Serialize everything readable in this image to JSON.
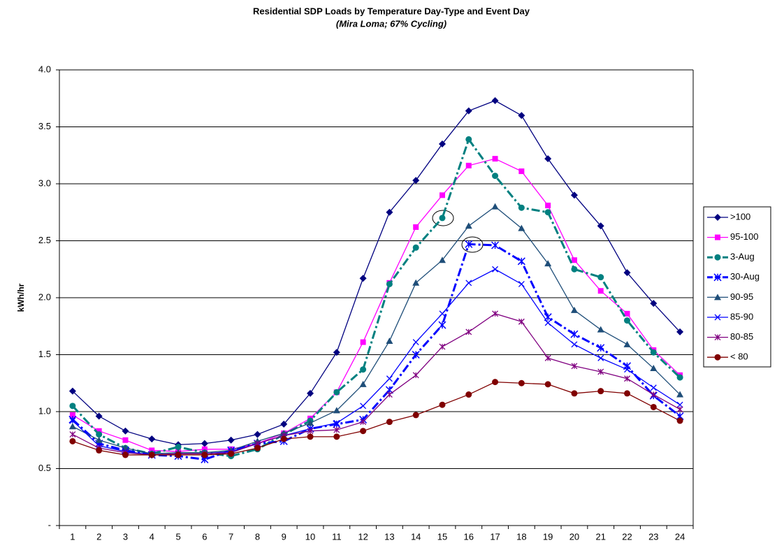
{
  "chart_data": {
    "type": "line",
    "title": "Residential SDP Loads by Temperature Day-Type and Event Day",
    "subtitle": "(Mira Loma; 67% Cycling)",
    "y_label": "kWh/hr",
    "categories": [
      1,
      2,
      3,
      4,
      5,
      6,
      7,
      8,
      9,
      10,
      11,
      12,
      13,
      14,
      15,
      16,
      17,
      18,
      19,
      20,
      21,
      22,
      23,
      24
    ],
    "ylim": [
      0,
      4
    ],
    "yticks": [
      {
        "value": 0,
        "label": "-"
      },
      0.5,
      {
        "value": 1,
        "label": "1.0"
      },
      1.5,
      {
        "value": 2,
        "label": "2.0"
      },
      2.5,
      {
        "value": 3,
        "label": "3.0"
      },
      3.5,
      {
        "value": 4,
        "label": "4.0"
      }
    ],
    "grid": true,
    "legend": "right",
    "series": [
      {
        "name": ">100",
        "color": "#000080",
        "marker": "diamond",
        "dash": "solid",
        "values": [
          1.18,
          0.96,
          0.83,
          0.76,
          0.71,
          0.72,
          0.75,
          0.8,
          0.89,
          1.16,
          1.52,
          2.17,
          2.75,
          3.03,
          3.35,
          3.64,
          3.73,
          3.6,
          3.22,
          2.9,
          2.63,
          2.22,
          1.95,
          1.7
        ]
      },
      {
        "name": "95-100",
        "color": "#ff00ff",
        "marker": "square",
        "dash": "solid",
        "values": [
          0.97,
          0.83,
          0.75,
          0.66,
          0.65,
          0.67,
          0.67,
          0.72,
          0.81,
          0.94,
          1.17,
          1.61,
          2.13,
          2.62,
          2.9,
          3.16,
          3.22,
          3.11,
          2.81,
          2.33,
          2.06,
          1.86,
          1.54,
          1.32
        ]
      },
      {
        "name": "3-Aug",
        "color": "#008080",
        "marker": "circle",
        "dash": "dashdot",
        "values": [
          1.05,
          0.8,
          0.68,
          0.63,
          0.69,
          0.64,
          0.61,
          0.67,
          0.8,
          0.92,
          1.17,
          1.37,
          2.12,
          2.44,
          2.7,
          3.39,
          3.07,
          2.79,
          2.75,
          2.25,
          2.18,
          1.8,
          1.52,
          1.3
        ]
      },
      {
        "name": "30-Aug",
        "color": "#0000ff",
        "marker": "star",
        "dash": "dashdot",
        "values": [
          0.93,
          0.72,
          0.66,
          0.62,
          0.61,
          0.58,
          0.66,
          0.72,
          0.74,
          0.85,
          0.89,
          0.93,
          1.19,
          1.5,
          1.76,
          2.47,
          2.46,
          2.32,
          1.83,
          1.68,
          1.56,
          1.4,
          1.14,
          0.96
        ]
      },
      {
        "name": "90-95",
        "color": "#1f4e79",
        "marker": "triangle",
        "dash": "solid",
        "values": [
          0.87,
          0.75,
          0.68,
          0.63,
          0.64,
          0.64,
          0.66,
          0.74,
          0.81,
          0.9,
          1.01,
          1.24,
          1.62,
          2.13,
          2.33,
          2.63,
          2.8,
          2.61,
          2.3,
          1.89,
          1.72,
          1.59,
          1.38,
          1.15
        ]
      },
      {
        "name": "85-90",
        "color": "#0000ff",
        "marker": "x",
        "dash": "solid",
        "values": [
          0.92,
          0.7,
          0.65,
          0.62,
          0.63,
          0.63,
          0.65,
          0.72,
          0.79,
          0.85,
          0.9,
          1.05,
          1.29,
          1.61,
          1.86,
          2.13,
          2.25,
          2.12,
          1.78,
          1.59,
          1.47,
          1.37,
          1.21,
          1.06
        ]
      },
      {
        "name": "80-85",
        "color": "#800080",
        "marker": "asterisk",
        "dash": "solid",
        "values": [
          0.8,
          0.68,
          0.64,
          0.62,
          0.63,
          0.63,
          0.64,
          0.72,
          0.79,
          0.83,
          0.84,
          0.91,
          1.15,
          1.32,
          1.57,
          1.7,
          1.86,
          1.79,
          1.47,
          1.4,
          1.35,
          1.29,
          1.15,
          1.02
        ]
      },
      {
        "name": "< 80",
        "color": "#800000",
        "marker": "circle",
        "dash": "solid",
        "values": [
          0.74,
          0.66,
          0.62,
          0.62,
          0.62,
          0.62,
          0.63,
          0.68,
          0.76,
          0.78,
          0.78,
          0.83,
          0.91,
          0.97,
          1.06,
          1.15,
          1.26,
          1.25,
          1.24,
          1.16,
          1.18,
          1.16,
          1.04,
          0.92
        ]
      }
    ]
  }
}
